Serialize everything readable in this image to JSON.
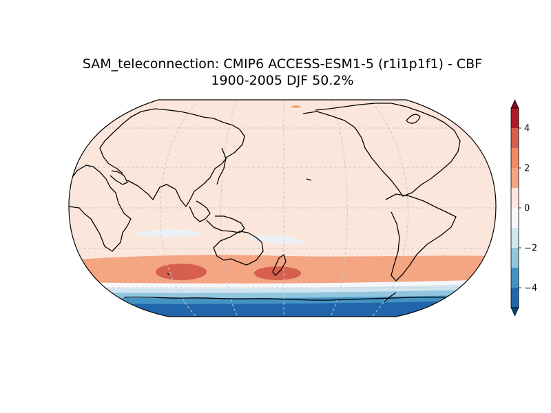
{
  "title": {
    "line1": "SAM_teleconnection: CMIP6 ACCESS-ESM1-5 (r1i1p1f1) - CBF",
    "line2": "1900-2005 DJF 50.2%"
  },
  "colorbar": {
    "ticks": [
      {
        "value": 4,
        "label": "4"
      },
      {
        "value": 2,
        "label": "2"
      },
      {
        "value": 0,
        "label": "0"
      },
      {
        "value": -2,
        "label": "−2"
      },
      {
        "value": -4,
        "label": "−4"
      }
    ],
    "range": [
      -5,
      5
    ],
    "levels": [
      {
        "from": 4,
        "to": 5,
        "color": "#b2182b"
      },
      {
        "from": 3,
        "to": 4,
        "color": "#d6604d"
      },
      {
        "from": 2,
        "to": 3,
        "color": "#ef8a62"
      },
      {
        "from": 1,
        "to": 2,
        "color": "#f4a582"
      },
      {
        "from": 0,
        "to": 1,
        "color": "#fbe6dc"
      },
      {
        "from": -1,
        "to": 0,
        "color": "#f5f7fb"
      },
      {
        "from": -2,
        "to": -1,
        "color": "#d1e5f0"
      },
      {
        "from": -3,
        "to": -2,
        "color": "#92c5de"
      },
      {
        "from": -4,
        "to": -3,
        "color": "#4393c3"
      },
      {
        "from": -5,
        "to": -4,
        "color": "#2166ac"
      }
    ],
    "over_color": "#8b0a26",
    "under_color": "#0a3d74"
  },
  "map": {
    "projection": "Robinson",
    "central_longitude": 180,
    "ocean_fill_color": "#fbe6dc",
    "coastline_color": "#000000",
    "gridline_color": "#c8c8c8"
  }
}
